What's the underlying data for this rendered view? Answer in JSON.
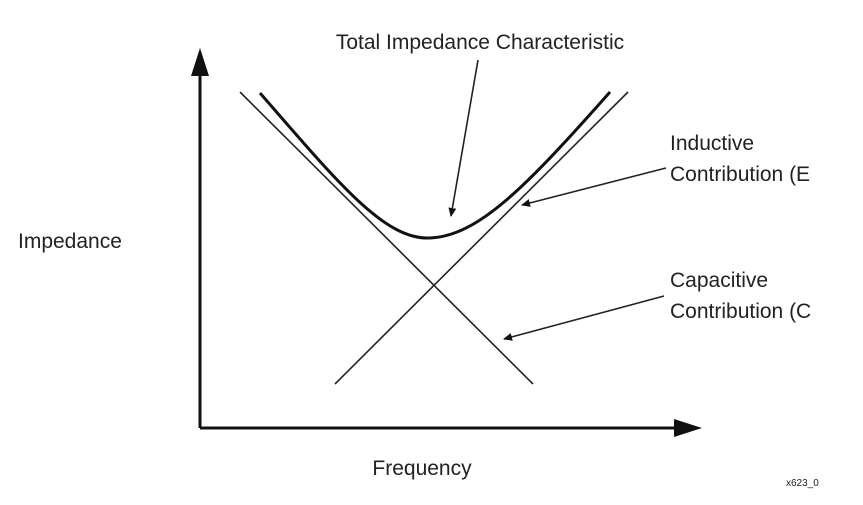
{
  "title": "Total Impedance Characteristic",
  "y_axis_label": "Impedance",
  "x_axis_label": "Frequency",
  "inductive_label": [
    "Inductive",
    "Contribution (E"
  ],
  "capacitive_label": [
    "Capacitive",
    "Contribution (C"
  ],
  "figure_id": "x623_0"
}
